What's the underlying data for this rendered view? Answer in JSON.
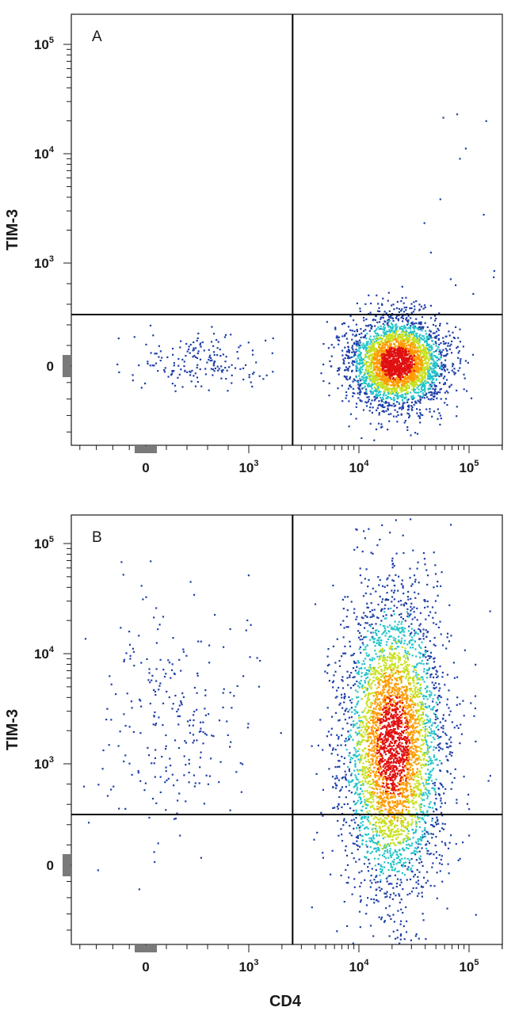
{
  "chart_data": [
    {
      "type": "scatter",
      "panel_label": "A",
      "xlabel": "",
      "ylabel": "TIM-3",
      "x_scale": "biexponential",
      "y_scale": "biexponential",
      "x_ticks": [
        {
          "value": 0,
          "base": "0",
          "exp": ""
        },
        {
          "value": 1000,
          "base": "10",
          "exp": "3"
        },
        {
          "value": 10000,
          "base": "10",
          "exp": "4"
        },
        {
          "value": 100000,
          "base": "10",
          "exp": "5"
        }
      ],
      "y_ticks": [
        {
          "value": 0,
          "base": "0",
          "exp": ""
        },
        {
          "value": 1000,
          "base": "10",
          "exp": "3"
        },
        {
          "value": 10000,
          "base": "10",
          "exp": "4"
        },
        {
          "value": 100000,
          "base": "10",
          "exp": "5"
        }
      ],
      "quadrant_gate": {
        "x": 2500,
        "y": 500
      },
      "populations": [
        {
          "center_x": 22000,
          "center_y": 40,
          "density": "high"
        },
        {
          "center_x": 500,
          "center_y": 40,
          "density": "low"
        }
      ]
    },
    {
      "type": "scatter",
      "panel_label": "B",
      "xlabel": "CD4",
      "ylabel": "TIM-3",
      "x_scale": "biexponential",
      "y_scale": "biexponential",
      "x_ticks": [
        {
          "value": 0,
          "base": "0",
          "exp": ""
        },
        {
          "value": 1000,
          "base": "10",
          "exp": "3"
        },
        {
          "value": 10000,
          "base": "10",
          "exp": "4"
        },
        {
          "value": 100000,
          "base": "10",
          "exp": "5"
        }
      ],
      "y_ticks": [
        {
          "value": 0,
          "base": "0",
          "exp": ""
        },
        {
          "value": 1000,
          "base": "10",
          "exp": "3"
        },
        {
          "value": 10000,
          "base": "10",
          "exp": "4"
        },
        {
          "value": 100000,
          "base": "10",
          "exp": "5"
        }
      ],
      "quadrant_gate": {
        "x": 2500,
        "y": 500
      },
      "populations": [
        {
          "center_x": 20000,
          "center_y": 2000,
          "density": "high"
        },
        {
          "center_x": 500,
          "center_y": 5000,
          "density": "low"
        }
      ]
    }
  ],
  "colors": {
    "axis": "#1a1a1a",
    "gate": "#000000",
    "zero_marker": "#7a7a7a",
    "density_low": "#1f3fa8",
    "density_mid": "#22c4c8",
    "density_midhigh": "#c8e020",
    "density_high": "#ff9a00",
    "density_peak": "#e01010"
  }
}
